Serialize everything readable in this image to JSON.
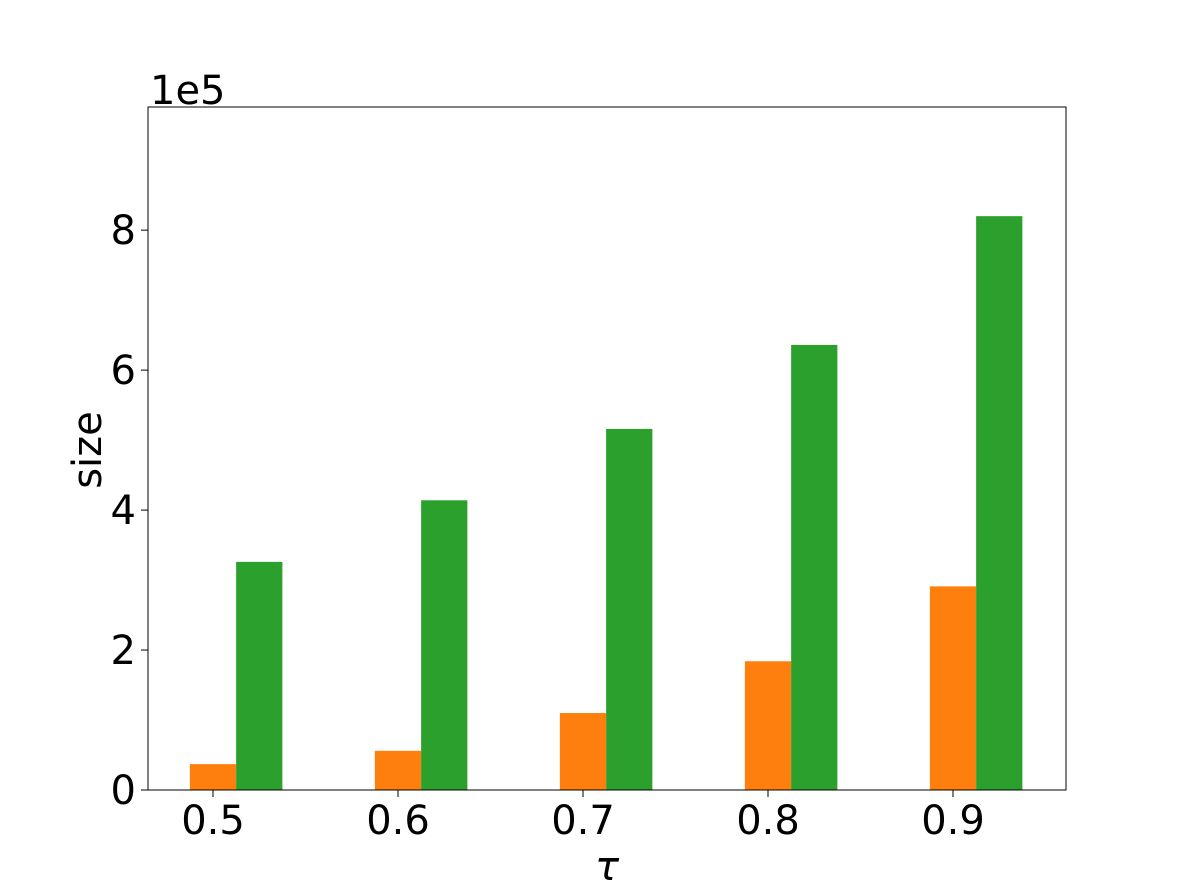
{
  "chart_data": {
    "type": "bar",
    "x_label": "τ",
    "y_label": "size",
    "y_offset_text": "1e5",
    "categories": [
      "0.5",
      "0.6",
      "0.7",
      "0.8",
      "0.9"
    ],
    "series": [
      {
        "color": "#ff7f0e",
        "values": [
          0.37,
          0.56,
          1.1,
          1.84,
          2.91
        ]
      },
      {
        "color": "#2ca02c",
        "values": [
          3.26,
          4.14,
          5.16,
          6.36,
          8.2
        ]
      }
    ],
    "ylim": [
      0,
      9.76
    ],
    "yticks": [
      0,
      2,
      4,
      6,
      8
    ]
  }
}
